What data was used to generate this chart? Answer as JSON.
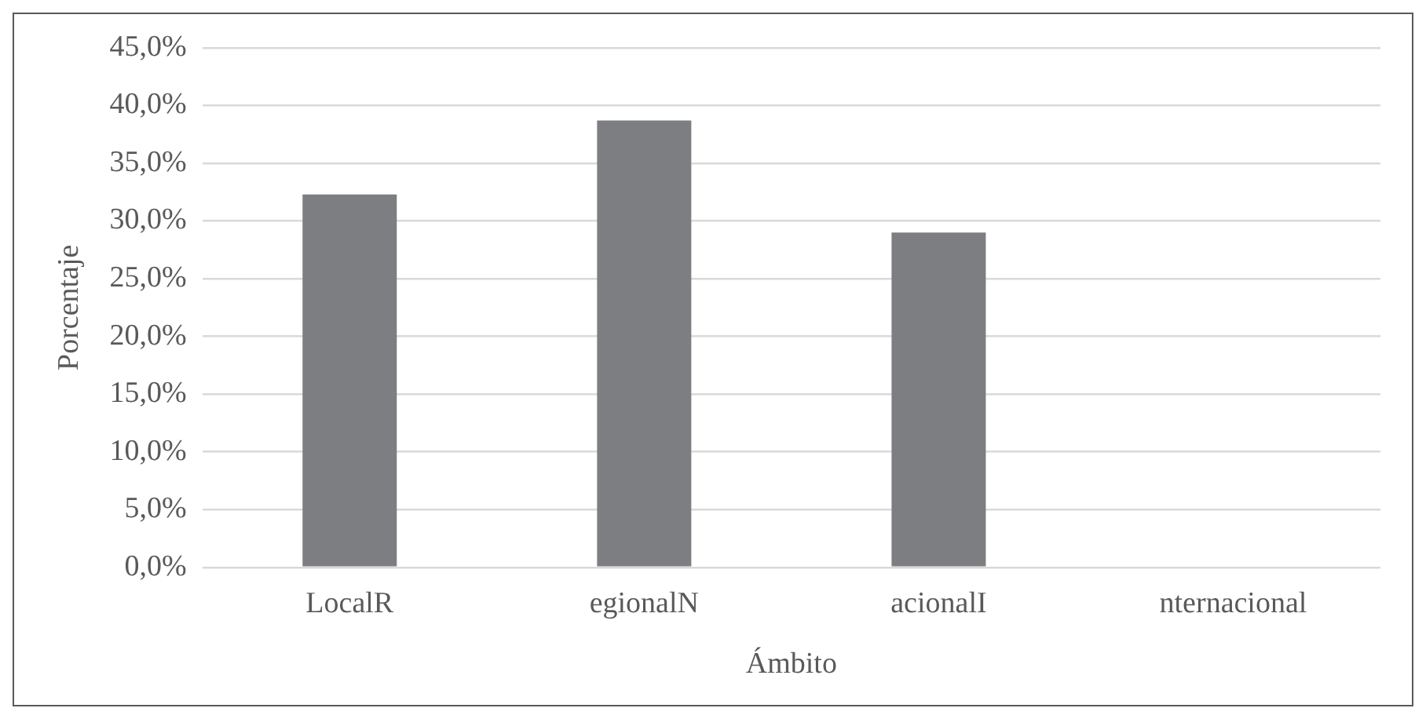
{
  "chart_data": {
    "type": "bar",
    "xlabel": "Ámbito",
    "ylabel": "Porcentaje",
    "categories": [
      "LocalR",
      "egionalN",
      "acionalI",
      "nternacional"
    ],
    "values": [
      32.3,
      38.7,
      29.0,
      0
    ],
    "color": "#7d7e82",
    "ylim": [
      0,
      45
    ],
    "yticks": [
      {
        "value": 0,
        "label": "0,0%"
      },
      {
        "value": 5,
        "label": "5,0%"
      },
      {
        "value": 10,
        "label": "10,0%"
      },
      {
        "value": 15,
        "label": "15,0%"
      },
      {
        "value": 20,
        "label": "20,0%"
      },
      {
        "value": 25,
        "label": "25,0%"
      },
      {
        "value": 30,
        "label": "30,0%"
      },
      {
        "value": 35,
        "label": "35,0%"
      },
      {
        "value": 40,
        "label": "40,0%"
      },
      {
        "value": 45,
        "label": "45,0%"
      }
    ],
    "grid": "y",
    "legend": false
  }
}
